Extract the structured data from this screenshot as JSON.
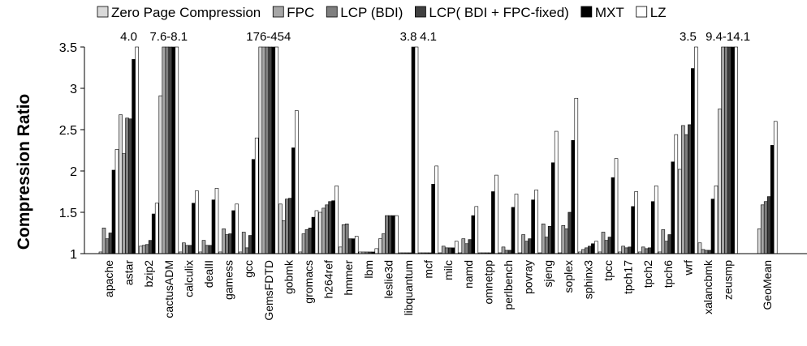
{
  "chart_data": {
    "type": "bar",
    "ylabel": "Compression Ratio",
    "ylim": [
      1,
      3.5
    ],
    "yticks": [
      "1",
      "1.5",
      "2",
      "2.5",
      "3",
      "3.5"
    ],
    "grid": false,
    "legend_position": "top",
    "series_colors": [
      "#d9d9d9",
      "#a6a6a6",
      "#7f7f7f",
      "#404040",
      "#000000",
      "#ffffff"
    ],
    "categories": [
      "apache",
      "astar",
      "bzip2",
      "cactusADM",
      "calculix",
      "dealII",
      "gamess",
      "gcc",
      "GemsFDTD",
      "gobmk",
      "gromacs",
      "h264ref",
      "hmmer",
      "lbm",
      "leslie3d",
      "libquantum",
      "mcf",
      "milc",
      "namd",
      "omnetpp",
      "perlbench",
      "povray",
      "sjeng",
      "soplex",
      "sphinx3",
      "tpcc",
      "tpch17",
      "tpch2",
      "tpch6",
      "wrf",
      "xalancbmk",
      "zeusmp",
      "GeoMean"
    ],
    "series": [
      {
        "name": "Zero Page Compression",
        "values": [
          1.02,
          2.68,
          1.09,
          2.91,
          1.02,
          1.02,
          1.02,
          1.02,
          3.5,
          1.6,
          1.02,
          1.5,
          1.08,
          1.02,
          1.18,
          1.01,
          1.01,
          1.01,
          1.01,
          1.01,
          1.01,
          1.01,
          1.01,
          1.01,
          1.02,
          1.02,
          1.02,
          1.02,
          1.02,
          2.02,
          1.13,
          2.75,
          1.3
        ]
      },
      {
        "name": "FPC",
        "values": [
          1.31,
          2.21,
          1.1,
          3.5,
          1.13,
          1.16,
          1.3,
          1.26,
          3.5,
          1.4,
          1.24,
          1.55,
          1.35,
          1.02,
          1.24,
          1.01,
          1.01,
          1.09,
          1.18,
          1.01,
          1.08,
          1.23,
          1.36,
          1.34,
          1.05,
          1.26,
          1.09,
          1.08,
          1.29,
          2.55,
          1.05,
          3.5,
          1.59
        ]
      },
      {
        "name": "LCP (BDI)",
        "values": [
          1.18,
          2.64,
          1.11,
          3.5,
          1.1,
          1.1,
          1.23,
          1.07,
          3.5,
          1.66,
          1.29,
          1.59,
          1.36,
          1.02,
          1.46,
          1.01,
          1.01,
          1.07,
          1.12,
          1.01,
          1.04,
          1.15,
          1.2,
          1.3,
          1.07,
          1.16,
          1.07,
          1.06,
          1.15,
          2.44,
          1.04,
          3.5,
          1.63
        ]
      },
      {
        "name": "LCP( BDI + FPC-fixed)",
        "values": [
          1.25,
          2.63,
          1.16,
          3.5,
          1.1,
          1.1,
          1.24,
          1.22,
          3.5,
          1.67,
          1.31,
          1.63,
          1.18,
          1.02,
          1.46,
          1.01,
          1.01,
          1.07,
          1.17,
          1.01,
          1.04,
          1.18,
          1.33,
          1.5,
          1.09,
          1.2,
          1.08,
          1.07,
          1.23,
          2.56,
          1.04,
          3.5,
          1.69
        ]
      },
      {
        "name": "MXT",
        "values": [
          2.01,
          3.35,
          1.48,
          3.5,
          1.61,
          1.65,
          1.52,
          2.14,
          3.5,
          2.28,
          1.44,
          1.64,
          1.18,
          1.02,
          1.46,
          3.5,
          1.84,
          1.07,
          1.46,
          1.75,
          1.56,
          1.65,
          2.1,
          2.37,
          1.12,
          1.92,
          1.57,
          1.63,
          2.11,
          3.24,
          1.66,
          3.5,
          2.31
        ]
      },
      {
        "name": "LZ",
        "values": [
          2.26,
          3.5,
          1.61,
          3.5,
          1.76,
          1.79,
          1.6,
          2.4,
          3.5,
          2.73,
          1.52,
          1.82,
          1.21,
          1.06,
          1.46,
          3.5,
          2.06,
          1.15,
          1.57,
          1.95,
          1.72,
          1.77,
          2.48,
          2.88,
          1.15,
          2.15,
          1.75,
          1.82,
          2.44,
          3.5,
          1.82,
          3.5,
          2.6
        ]
      }
    ],
    "annotations": [
      {
        "category": "astar",
        "text": "4.0"
      },
      {
        "category": "cactusADM",
        "text": "7.6-8.1"
      },
      {
        "category": "GemsFDTD",
        "text": "176-454"
      },
      {
        "category": "libquantum",
        "text": "3.8"
      },
      {
        "category": "mcf",
        "text": "4.1"
      },
      {
        "category": "wrf",
        "text": "3.5"
      },
      {
        "category": "zeusmp",
        "text": "9.4-14.1"
      }
    ]
  }
}
